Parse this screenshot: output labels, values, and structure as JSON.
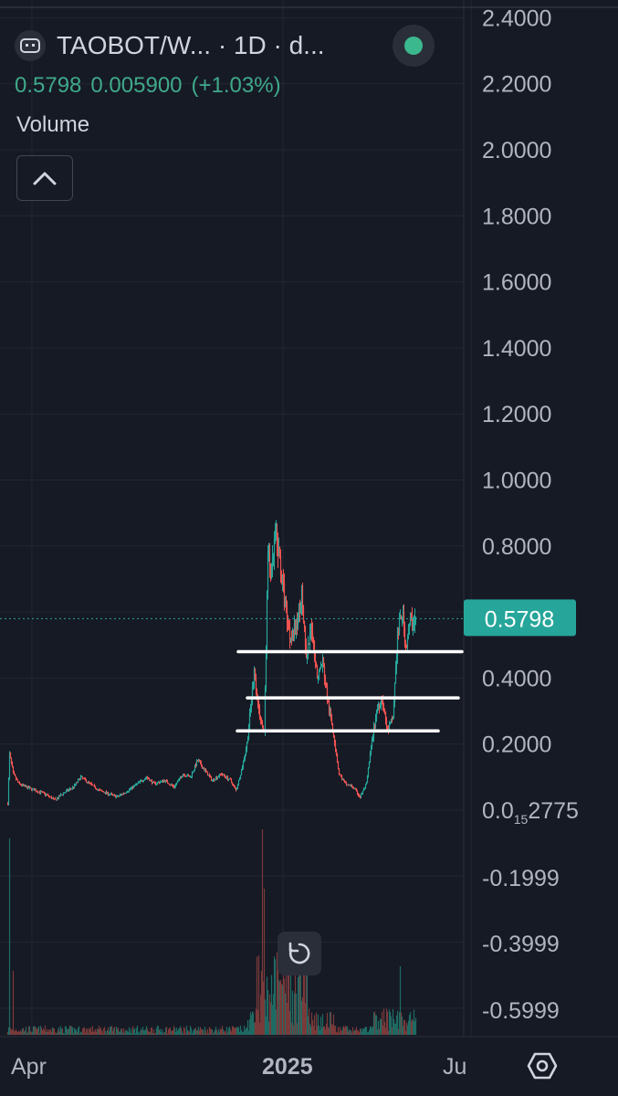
{
  "header": {
    "title": "TAOBOT/W...  · 1D · d...",
    "logo_icon": "robot-face-icon",
    "status_icon": "market-open-dot-icon",
    "status_color": "#3cb88e"
  },
  "quote": {
    "price": "0.5798",
    "change": "0.005900",
    "change_pct": "(+1.03%)",
    "color": "#3fa98a"
  },
  "indicators": {
    "volume_label": "Volume",
    "collapse_icon": "chevron-up-icon"
  },
  "controls": {
    "reset_icon": "reset-rotate-icon",
    "settings_icon": "hexagon-settings-icon"
  },
  "chart_data": {
    "type": "candlestick",
    "symbol": "TAOBOT/W",
    "interval": "1D",
    "last_price_label": "0.5798",
    "last_price": 0.5798,
    "colors": {
      "up": "#26a69a",
      "down": "#ef5350",
      "last_price_badge": "#26a69a",
      "support_lines": "#ffffff",
      "grid": "#232733"
    },
    "y_axis": {
      "ticks": [
        2.4,
        2.2,
        2.0,
        1.8,
        1.6,
        1.4,
        1.2,
        1.0,
        0.8,
        0.4,
        0.2
      ],
      "tick_labels": [
        "2.4000",
        "2.2000",
        "2.0000",
        "1.8000",
        "1.6000",
        "1.4000",
        "1.2000",
        "1.0000",
        "0.8000",
        "0.4000",
        "0.2000"
      ],
      "zero_label_prefix": "0.0",
      "zero_label_subscript": "15",
      "zero_label_suffix": "2775",
      "neg_ticks": [
        -0.1999,
        -0.3999,
        -0.5999
      ],
      "neg_tick_labels": [
        "-0.1999",
        "-0.3999",
        "-0.5999"
      ]
    },
    "x_axis": {
      "labels": [
        "Apr",
        "2025",
        "Ju"
      ],
      "label_days": [
        0,
        275,
        481
      ]
    },
    "support_levels": [
      {
        "price": 0.48,
        "start_day": 247,
        "end_day": 480
      },
      {
        "price": 0.34,
        "start_day": 257,
        "end_day": 476
      },
      {
        "price": 0.24,
        "start_day": 246,
        "end_day": 454
      }
    ],
    "price_path": [
      [
        0,
        0.02
      ],
      [
        2,
        0.17
      ],
      [
        6,
        0.11
      ],
      [
        12,
        0.08
      ],
      [
        20,
        0.07
      ],
      [
        30,
        0.06
      ],
      [
        40,
        0.05
      ],
      [
        52,
        0.03
      ],
      [
        60,
        0.05
      ],
      [
        72,
        0.07
      ],
      [
        80,
        0.1
      ],
      [
        90,
        0.08
      ],
      [
        100,
        0.06
      ],
      [
        110,
        0.05
      ],
      [
        120,
        0.04
      ],
      [
        132,
        0.06
      ],
      [
        142,
        0.08
      ],
      [
        152,
        0.1
      ],
      [
        160,
        0.08
      ],
      [
        172,
        0.09
      ],
      [
        182,
        0.07
      ],
      [
        192,
        0.11
      ],
      [
        200,
        0.1
      ],
      [
        208,
        0.15
      ],
      [
        216,
        0.12
      ],
      [
        224,
        0.09
      ],
      [
        234,
        0.11
      ],
      [
        244,
        0.09
      ],
      [
        250,
        0.06
      ],
      [
        256,
        0.12
      ],
      [
        262,
        0.2
      ],
      [
        270,
        0.42
      ],
      [
        275,
        0.3
      ],
      [
        281,
        0.23
      ],
      [
        285,
        0.78
      ],
      [
        289,
        0.71
      ],
      [
        293,
        0.83
      ],
      [
        298,
        0.76
      ],
      [
        303,
        0.64
      ],
      [
        309,
        0.53
      ],
      [
        316,
        0.55
      ],
      [
        322,
        0.66
      ],
      [
        327,
        0.45
      ],
      [
        333,
        0.56
      ],
      [
        339,
        0.4
      ],
      [
        345,
        0.45
      ],
      [
        351,
        0.32
      ],
      [
        357,
        0.23
      ],
      [
        363,
        0.11
      ],
      [
        370,
        0.08
      ],
      [
        378,
        0.07
      ],
      [
        386,
        0.04
      ],
      [
        393,
        0.08
      ],
      [
        398,
        0.19
      ],
      [
        404,
        0.3
      ],
      [
        410,
        0.34
      ],
      [
        416,
        0.24
      ],
      [
        422,
        0.28
      ],
      [
        427,
        0.53
      ],
      [
        432,
        0.6
      ],
      [
        436,
        0.5
      ],
      [
        441,
        0.57
      ],
      [
        447,
        0.58
      ]
    ]
  }
}
